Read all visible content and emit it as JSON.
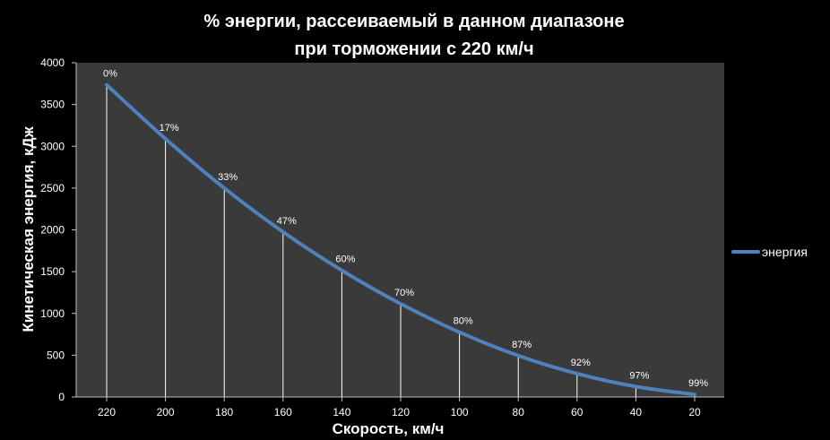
{
  "chart_data": {
    "type": "line",
    "title": [
      "% энергии, рассеиваемый в данном диапазоне",
      "при торможении с  220 км/ч"
    ],
    "xlabel": "Скорость, км/ч",
    "ylabel": "Кинетическая энергия, кДж",
    "categories": [
      "220",
      "200",
      "180",
      "160",
      "140",
      "120",
      "100",
      "80",
      "60",
      "40",
      "20"
    ],
    "ylim": [
      0,
      4000
    ],
    "yticks": [
      0,
      500,
      1000,
      1500,
      2000,
      2500,
      3000,
      3500,
      4000
    ],
    "series": [
      {
        "name": "энергия",
        "color": "#4f81bd",
        "values": [
          3735,
          3090,
          2500,
          1975,
          1515,
          1115,
          775,
          495,
          280,
          125,
          30
        ],
        "labels": [
          "0%",
          "17%",
          "33%",
          "47%",
          "60%",
          "70%",
          "80%",
          "87%",
          "92%",
          "97%",
          "99%"
        ]
      }
    ],
    "drop_lines": true,
    "grid": false,
    "legend": "right",
    "plot_background": "#3a3a3a"
  }
}
